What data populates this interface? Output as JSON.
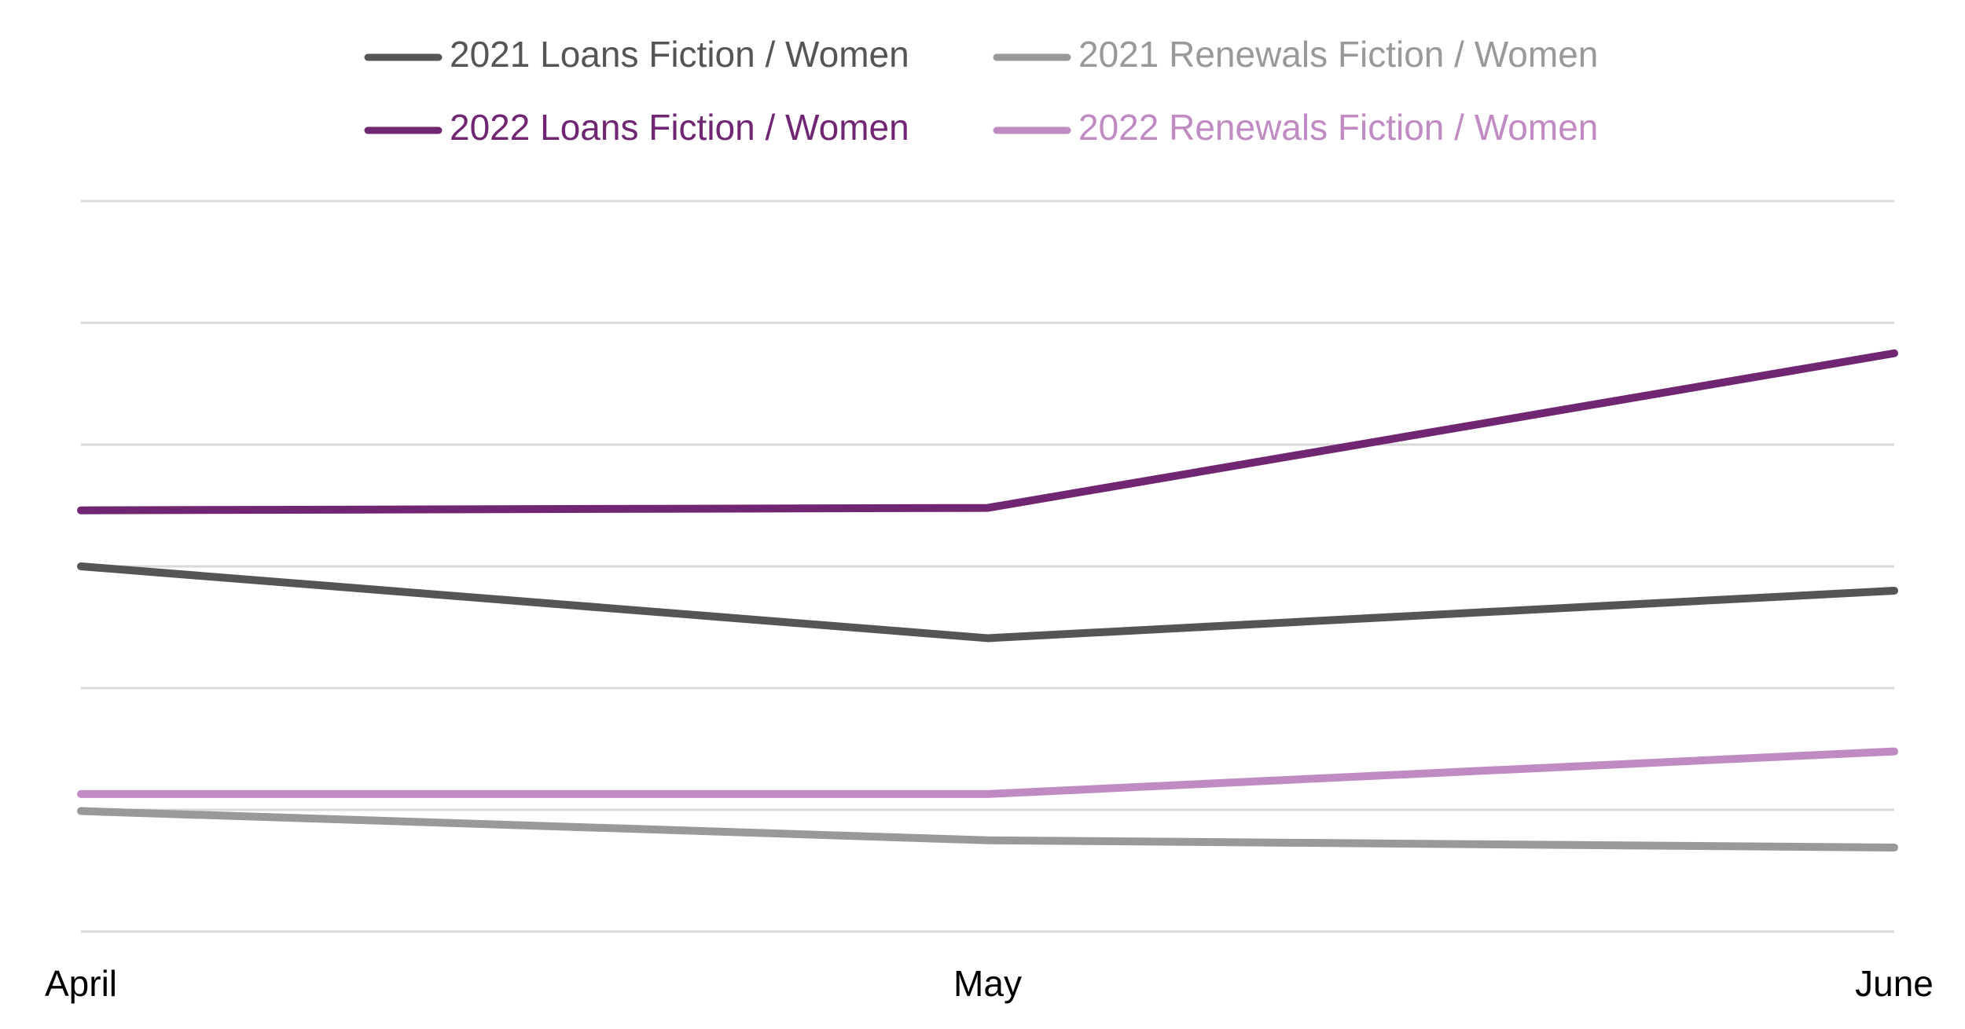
{
  "chart_data": {
    "type": "line",
    "categories": [
      "April",
      "May",
      "June"
    ],
    "ylim": [
      0,
      6
    ],
    "grid": true,
    "legend_position": "top",
    "series": [
      {
        "name": "2021 Loans Fiction / Women",
        "values": [
          3.0,
          2.41,
          2.8
        ],
        "color": "#555555"
      },
      {
        "name": "2021 Renewals Fiction / Women",
        "values": [
          0.99,
          0.75,
          0.69
        ],
        "color": "#999999"
      },
      {
        "name": "2022 Loans Fiction / Women",
        "values": [
          3.46,
          3.48,
          4.75
        ],
        "color": "#702673"
      },
      {
        "name": "2022 Renewals Fiction / Women",
        "values": [
          1.13,
          1.13,
          1.48
        ],
        "color": "#C08AC3"
      }
    ]
  }
}
